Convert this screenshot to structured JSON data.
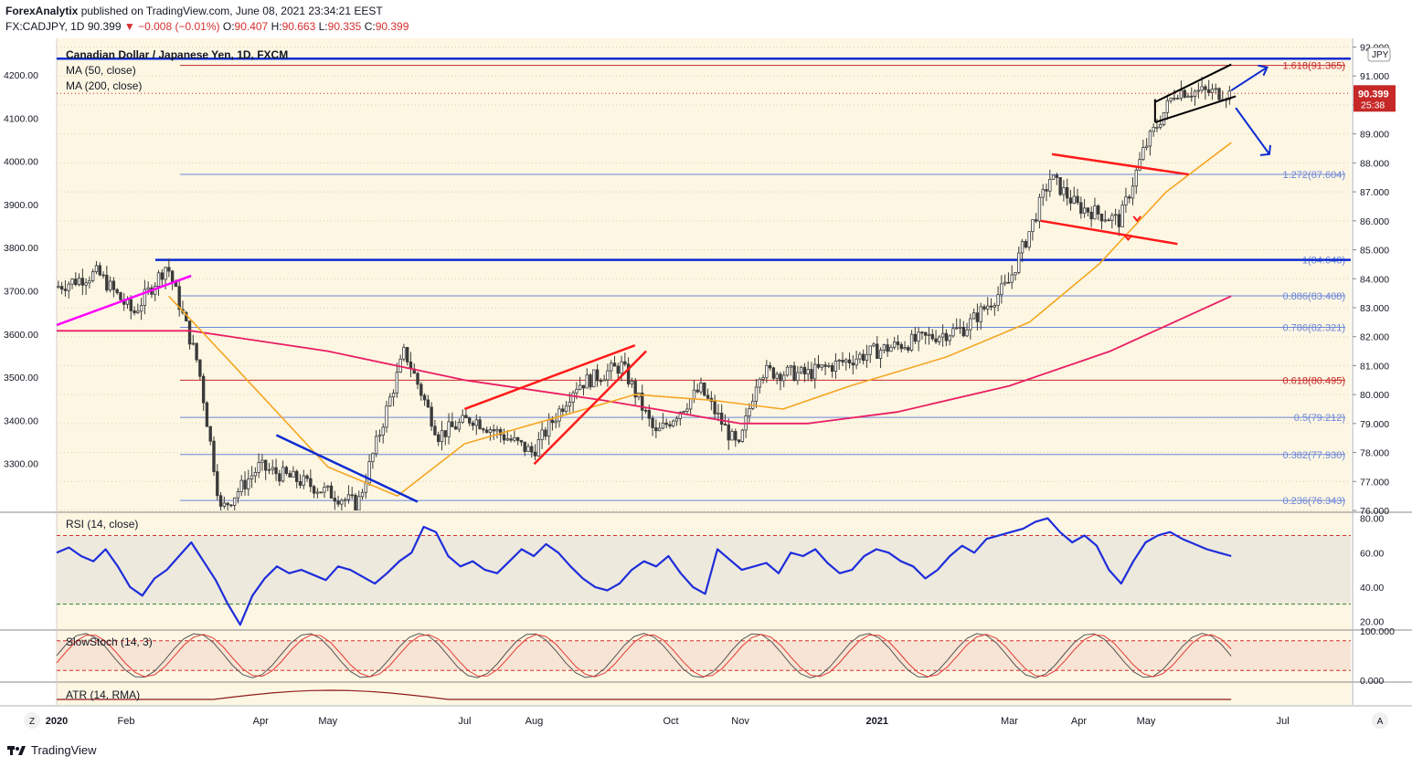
{
  "header": {
    "publisher": "ForexAnalytix",
    "published_text": "published on TradingView.com, June 08, 2021 23:34:21 EEST",
    "symbol_line": "FX:CADJPY, 1D",
    "last": "90.399",
    "change": "−0.008 (−0.01%)",
    "open_label": "O:",
    "open": "90.407",
    "high_label": "H:",
    "high": "90.663",
    "low_label": "L:",
    "low": "90.335",
    "close_label": "C:",
    "close": "90.399"
  },
  "legend": {
    "title": "Canadian Dollar / Japanese Yen, 1D, FXCM",
    "ma50": "MA (50, close)",
    "ma200": "MA (200, close)",
    "rsi": "RSI (14, close)",
    "stoch": "SlowStoch (14, 3)",
    "atr": "ATR (14, RMA)"
  },
  "price_badge": {
    "price": "90.399",
    "time": "25:38"
  },
  "currency_badge": "JPY",
  "footer": {
    "brand": "TradingView"
  },
  "corner_left": "Z",
  "corner_right": "A",
  "colors": {
    "background": "#fdf6e3",
    "candle": "#3a3a3a",
    "ma50": "#f5a623",
    "ma200": "#e91e63",
    "blue_line": "#0d2bd1",
    "magenta": "#ff00ff",
    "red": "#ff1a1a",
    "fib_blue": "#6b86d9",
    "fib_red": "#c62828",
    "rsi": "#1e2ddb",
    "price_badge": "#c62828"
  },
  "chart_data": [
    {
      "type": "candlestick",
      "title": "Canadian Dollar / Japanese Yen, 1D, FXCM",
      "x_tick_labels": [
        "2020",
        "Feb",
        "Apr",
        "May",
        "Jul",
        "Aug",
        "Oct",
        "Nov",
        "2021",
        "Mar",
        "Apr",
        "May",
        "Jul"
      ],
      "right_axis_ticks": [
        "92.000",
        "91.000",
        "90.000",
        "89.000",
        "88.000",
        "87.000",
        "86.000",
        "85.000",
        "84.000",
        "83.000",
        "82.000",
        "81.000",
        "80.000",
        "79.000",
        "78.000",
        "77.000",
        "76.000"
      ],
      "left_axis_ticks": [
        "4200.00",
        "4100.00",
        "4000.00",
        "3900.00",
        "3800.00",
        "3700.00",
        "3600.00",
        "3500.00",
        "3400.00",
        "3300.00"
      ],
      "ylim": [
        76.0,
        92.3
      ],
      "close_path": [
        [
          "2020-01",
          83.7
        ],
        [
          "2020-01-20",
          84.2
        ],
        [
          "2020-02-05",
          82.8
        ],
        [
          "2020-02-20",
          84.5
        ],
        [
          "2020-03-05",
          81.0
        ],
        [
          "2020-03-15",
          76.0
        ],
        [
          "2020-04-01",
          77.5
        ],
        [
          "2020-04-20",
          77.0
        ],
        [
          "2020-05-15",
          76.2
        ],
        [
          "2020-06-05",
          81.5
        ],
        [
          "2020-06-20",
          78.6
        ],
        [
          "2020-07-05",
          79.2
        ],
        [
          "2020-08-01",
          78.0
        ],
        [
          "2020-08-20",
          80.3
        ],
        [
          "2020-09-10",
          81.0
        ],
        [
          "2020-09-25",
          78.6
        ],
        [
          "2020-10-15",
          80.2
        ],
        [
          "2020-11-01",
          78.1
        ],
        [
          "2020-11-10",
          80.8
        ],
        [
          "2020-12-01",
          80.7
        ],
        [
          "2021-01-01",
          81.5
        ],
        [
          "2021-02-10",
          82.3
        ],
        [
          "2021-03-01",
          83.8
        ],
        [
          "2021-03-10",
          85.5
        ],
        [
          "2021-03-20",
          87.5
        ],
        [
          "2021-04-01",
          86.5
        ],
        [
          "2021-04-20",
          86.0
        ],
        [
          "2021-05-01",
          88.5
        ],
        [
          "2021-05-15",
          90.5
        ],
        [
          "2021-06-08",
          90.399
        ]
      ],
      "ma50_path": [
        [
          "2020-02-20",
          83.4
        ],
        [
          "2020-03-20",
          81.0
        ],
        [
          "2020-05-01",
          77.5
        ],
        [
          "2020-06-01",
          76.5
        ],
        [
          "2020-07-01",
          78.3
        ],
        [
          "2020-08-15",
          79.3
        ],
        [
          "2020-09-15",
          80.0
        ],
        [
          "2020-10-20",
          79.8
        ],
        [
          "2020-11-20",
          79.5
        ],
        [
          "2020-12-20",
          80.3
        ],
        [
          "2021-02-01",
          81.3
        ],
        [
          "2021-03-10",
          82.5
        ],
        [
          "2021-04-10",
          84.5
        ],
        [
          "2021-05-10",
          87.0
        ],
        [
          "2021-06-08",
          88.7
        ]
      ],
      "ma200_path": [
        [
          "2020-01",
          82.2
        ],
        [
          "2020-03-01",
          82.2
        ],
        [
          "2020-05-01",
          81.5
        ],
        [
          "2020-07-01",
          80.5
        ],
        [
          "2020-09-01",
          79.8
        ],
        [
          "2020-11-01",
          79.0
        ],
        [
          "2020-12-01",
          79.0
        ],
        [
          "2021-01-10",
          79.4
        ],
        [
          "2021-03-01",
          80.3
        ],
        [
          "2021-04-15",
          81.5
        ],
        [
          "2021-06-08",
          83.4
        ]
      ],
      "fib_levels": [
        {
          "label": "1.618(91.365)",
          "value": 91.365
        },
        {
          "label": "1.272(87.604)",
          "value": 87.604
        },
        {
          "label": "1(84.648)",
          "value": 84.648
        },
        {
          "label": "0.886(83.408)",
          "value": 83.408
        },
        {
          "label": "0.786(82.321)",
          "value": 82.321
        },
        {
          "label": "0.618(80.495)",
          "value": 80.495
        },
        {
          "label": "0.5(79.212)",
          "value": 79.212
        },
        {
          "label": "0.382(77.930)",
          "value": 77.93
        },
        {
          "label": "0.236(76.343)",
          "value": 76.343
        }
      ],
      "horizontal_levels": [
        91.6,
        84.65
      ],
      "last_price": 90.399
    },
    {
      "type": "line",
      "title": "RSI (14, close)",
      "right_axis_ticks": [
        "80.00",
        "60.00",
        "40.00",
        "20.00"
      ],
      "ylim": [
        16,
        83
      ],
      "bands": [
        70,
        30
      ],
      "values": [
        60,
        63,
        58,
        55,
        62,
        52,
        40,
        35,
        45,
        50,
        58,
        66,
        55,
        44,
        30,
        18,
        35,
        45,
        52,
        48,
        50,
        47,
        44,
        52,
        50,
        46,
        42,
        48,
        55,
        60,
        75,
        72,
        58,
        52,
        55,
        50,
        48,
        55,
        62,
        58,
        65,
        60,
        52,
        45,
        40,
        38,
        42,
        50,
        55,
        52,
        58,
        48,
        40,
        36,
        62,
        56,
        50,
        52,
        54,
        48,
        60,
        58,
        62,
        54,
        48,
        50,
        58,
        62,
        60,
        55,
        52,
        45,
        50,
        58,
        64,
        60,
        68,
        70,
        72,
        74,
        78,
        80,
        72,
        66,
        70,
        64,
        50,
        42,
        55,
        66,
        70,
        72,
        68,
        65,
        62,
        60,
        58
      ]
    },
    {
      "type": "line",
      "title": "SlowStoch (14, 3)",
      "right_axis_ticks": [
        "100.000",
        "0.000"
      ],
      "ylim": [
        0,
        100
      ],
      "bands": [
        80,
        20
      ]
    },
    {
      "type": "line",
      "title": "ATR (14, RMA)"
    }
  ]
}
